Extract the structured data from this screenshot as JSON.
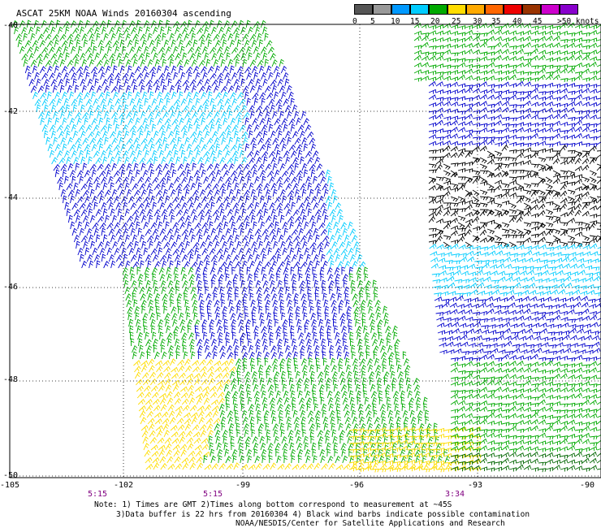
{
  "title": "ASCAT 25KM NOAA Winds 20160304 ascending",
  "colorbar": {
    "colors": [
      "#555555",
      "#999999",
      "#0099ff",
      "#00ccff",
      "#00aa00",
      "#ffdd00",
      "#ffaa00",
      "#ff6600",
      "#ee0000",
      "#993300",
      "#cc00cc",
      "#8800cc"
    ],
    "labels": [
      "0",
      "5",
      "10",
      "15",
      "20",
      "25",
      "30",
      "35",
      "40",
      "45",
      ">50 knots"
    ]
  },
  "lat_labels": [
    "-40",
    "-42",
    "-44",
    "-46",
    "-48",
    "-50"
  ],
  "lon_labels": [
    "-105",
    "-102",
    "-99",
    "-96",
    "-93",
    "-90"
  ],
  "time_labels": [
    "5:15",
    "5:15",
    "3:34"
  ],
  "notes": [
    "Note: 1) Times are GMT 2)Times along bottom correspond to measurement at ~45S",
    "3)Data buffer is 22 hrs from 20160304 4) Black wind barbs indicate possible contamination",
    "NOAA/NESDIS/Center for Satellite Applications and Research"
  ]
}
